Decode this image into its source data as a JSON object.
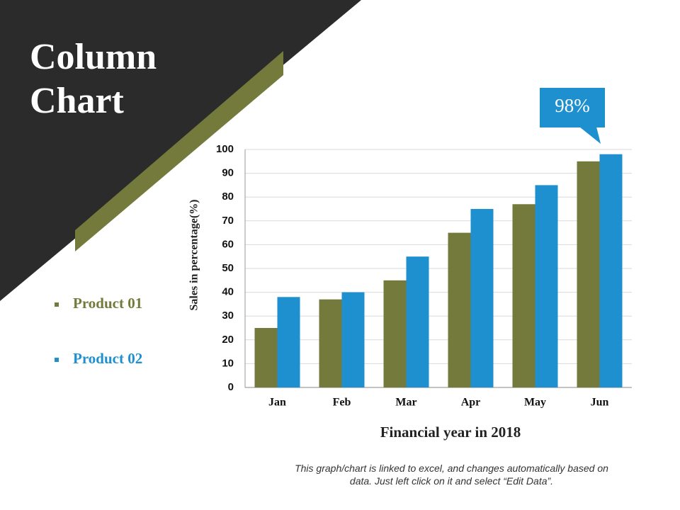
{
  "chart_data": {
    "type": "bar",
    "title": "Column Chart",
    "categories": [
      "Jan",
      "Feb",
      "Mar",
      "Apr",
      "May",
      "Jun"
    ],
    "series": [
      {
        "name": "Product 01",
        "color": "#737a3c",
        "values": [
          25,
          37,
          45,
          65,
          77,
          95
        ]
      },
      {
        "name": "Product 02",
        "color": "#1e90d0",
        "values": [
          38,
          40,
          55,
          75,
          85,
          98
        ]
      }
    ],
    "ylim": [
      0,
      100
    ],
    "yticks": [
      0,
      10,
      20,
      30,
      40,
      50,
      60,
      70,
      80,
      90,
      100
    ],
    "grid": true,
    "y_label": "Sales in percentage(%)",
    "x_label": "Financial year in 2018",
    "annotation": "98%",
    "footnote": "This graph/chart is linked to excel, and changes automatically based on data. Just left click on it and select “Edit Data”."
  }
}
